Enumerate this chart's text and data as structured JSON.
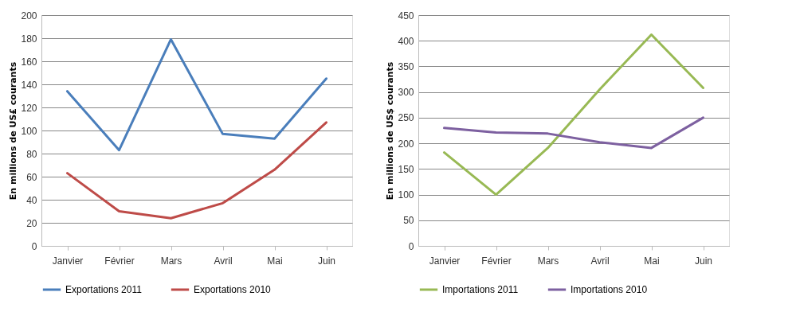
{
  "chart_data": [
    {
      "type": "line",
      "ylabel": "En millions de US£ courants",
      "categories": [
        "Janvier",
        "Février",
        "Mars",
        "Avril",
        "Mai",
        "Juin"
      ],
      "ylim": [
        0,
        200
      ],
      "yticks": [
        0,
        20,
        40,
        60,
        80,
        100,
        120,
        140,
        160,
        180,
        200
      ],
      "grid": "y",
      "legend": "bottom",
      "marker": "none",
      "line_style": "solid",
      "series": [
        {
          "name": "Exportations 2011",
          "color": "#4a7ebb",
          "values": [
            134,
            83,
            179,
            97,
            93,
            145
          ]
        },
        {
          "name": "Exportations 2010",
          "color": "#be4b48",
          "values": [
            63,
            30,
            24,
            37,
            66,
            107
          ]
        }
      ]
    },
    {
      "type": "line",
      "ylabel": "En millions de US$ courants",
      "categories": [
        "Janvier",
        "Février",
        "Mars",
        "Avril",
        "Mai",
        "Juin"
      ],
      "ylim": [
        0,
        450
      ],
      "yticks": [
        0,
        50,
        100,
        150,
        200,
        250,
        300,
        350,
        400,
        450
      ],
      "grid": "y",
      "legend": "bottom",
      "marker": "none",
      "line_style": "solid",
      "series": [
        {
          "name": "Importations 2011",
          "color": "#98b954",
          "values": [
            182,
            100,
            191,
            305,
            412,
            308
          ]
        },
        {
          "name": "Importations 2010",
          "color": "#7d60a0",
          "values": [
            230,
            221,
            219,
            202,
            191,
            250
          ]
        }
      ]
    }
  ]
}
